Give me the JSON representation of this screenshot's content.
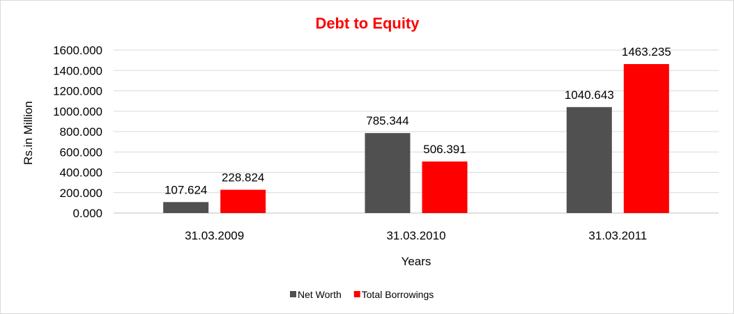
{
  "chart_data": {
    "type": "bar",
    "title": "Debt to Equity",
    "xlabel": "Years",
    "ylabel": "Rs.in Million",
    "categories": [
      "31.03.2009",
      "31.03.2010",
      "31.03.2011"
    ],
    "series": [
      {
        "name": "Net Worth",
        "color": "#505050",
        "values": [
          107.624,
          785.344,
          1040.643
        ],
        "labels": [
          "107.624",
          "785.344",
          "1040.643"
        ]
      },
      {
        "name": "Total Borrowings",
        "color": "#ff0000",
        "values": [
          228.824,
          506.391,
          1463.235
        ],
        "labels": [
          "228.824",
          "506.391",
          "1463.235"
        ]
      }
    ],
    "ylim": [
      0,
      1600
    ],
    "yticks": [
      0,
      200,
      400,
      600,
      800,
      1000,
      1200,
      1400,
      1600
    ],
    "ytick_labels": [
      "0.000",
      "200.000",
      "400.000",
      "600.000",
      "800.000",
      "1000.000",
      "1200.000",
      "1400.000",
      "1600.000"
    ],
    "grid": true,
    "legend_position": "bottom",
    "title_color": "#ff0000"
  }
}
